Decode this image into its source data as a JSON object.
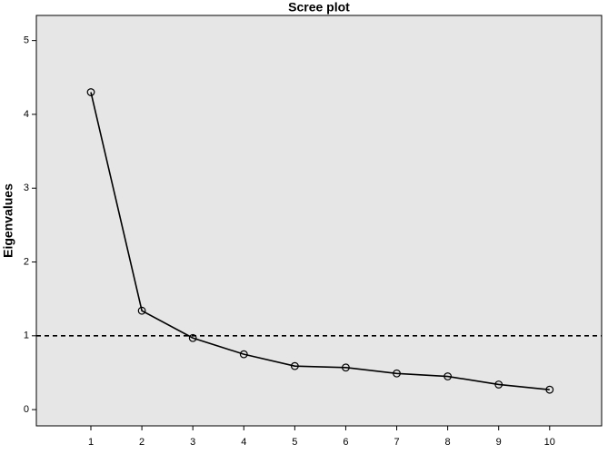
{
  "chart_data": {
    "type": "line",
    "title": "Scree plot",
    "y_label": "Eigenvalues",
    "x": [
      1,
      2,
      3,
      4,
      5,
      6,
      7,
      8,
      9,
      10
    ],
    "values": [
      4.3,
      1.34,
      0.97,
      0.75,
      0.59,
      0.57,
      0.49,
      0.45,
      0.34,
      0.27
    ],
    "color": "#000000",
    "marker": "circle",
    "xlim": [
      -0.07,
      11.02
    ],
    "xticks": [
      1,
      2,
      3,
      4,
      5,
      6,
      7,
      8,
      9,
      10
    ],
    "ylim": [
      -0.22,
      5.34
    ],
    "yticks": [
      0,
      1,
      2,
      3,
      4,
      5
    ],
    "reference_line": 1,
    "plot_background": "#e6e6e6",
    "grid": false
  }
}
